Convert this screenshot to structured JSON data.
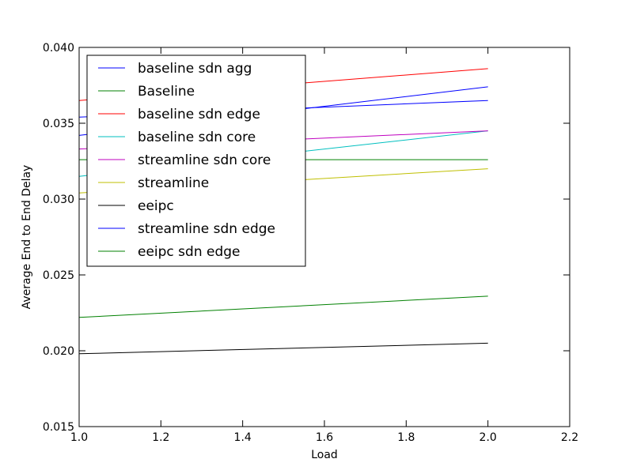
{
  "chart_data": {
    "type": "line",
    "title": "",
    "xlabel": "Load",
    "ylabel": "Average End to End Delay",
    "xlim": [
      1.0,
      2.2
    ],
    "ylim": [
      0.015,
      0.04
    ],
    "xticks": [
      "1.0",
      "1.2",
      "1.4",
      "1.6",
      "1.8",
      "2.0",
      "2.2"
    ],
    "yticks": [
      "0.015",
      "0.020",
      "0.025",
      "0.030",
      "0.035",
      "0.040"
    ],
    "grid": false,
    "legend_position": "upper-left",
    "x": [
      1,
      2
    ],
    "series": [
      {
        "name": "baseline sdn agg",
        "color": "#0000ff",
        "values": [
          0.0354,
          0.0365
        ]
      },
      {
        "name": "Baseline",
        "color": "#008000",
        "values": [
          0.0222,
          0.0236
        ]
      },
      {
        "name": "baseline sdn edge",
        "color": "#ff0000",
        "values": [
          0.0365,
          0.0386
        ]
      },
      {
        "name": "baseline sdn core",
        "color": "#00bfbf",
        "values": [
          0.0315,
          0.0345
        ]
      },
      {
        "name": "streamline sdn core",
        "color": "#bf00bf",
        "values": [
          0.0333,
          0.0345
        ]
      },
      {
        "name": "streamline",
        "color": "#bfbf00",
        "values": [
          0.0304,
          0.032
        ]
      },
      {
        "name": "eeipc",
        "color": "#000000",
        "values": [
          0.0198,
          0.0205
        ]
      },
      {
        "name": "streamline sdn edge",
        "color": "#0000ff",
        "values": [
          0.0342,
          0.0374
        ]
      },
      {
        "name": "eeipc sdn edge",
        "color": "#008000",
        "values": [
          0.0326,
          0.0326
        ]
      }
    ]
  }
}
